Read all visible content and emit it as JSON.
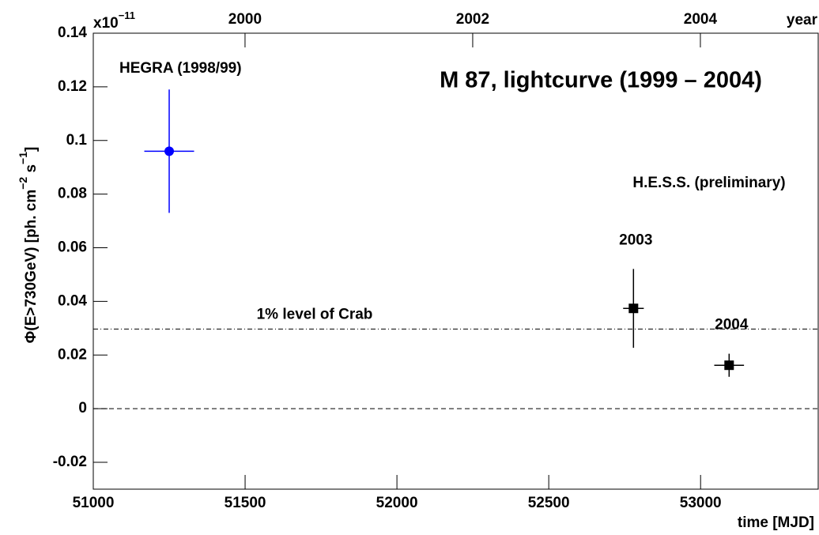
{
  "chart_data": {
    "type": "scatter",
    "title": "M 87, lightcurve (1999 – 2004)",
    "xlabel": "time [MJD]",
    "ylabel": [
      "Φ(E>730GeV) [ph. cm",
      "−2",
      " s",
      "−1",
      "]"
    ],
    "axis_multiplier": {
      "base": "x10",
      "exponent": "−11"
    },
    "x2label": "year",
    "xlim": [
      51000,
      53390
    ],
    "xticks": [
      51000,
      51500,
      52000,
      52500,
      53000
    ],
    "x2lim": [
      1998.667,
      2005.042
    ],
    "x2ticks": [
      2000,
      2002,
      2004
    ],
    "ylim": [
      -0.03,
      0.14
    ],
    "yticks": [
      -0.02,
      0,
      0.02,
      0.04,
      0.06,
      0.08,
      0.1,
      0.12,
      0.14
    ],
    "series": [
      {
        "name": "HEGRA (1998/99)",
        "color": "#0000ff",
        "marker": "circle",
        "x": [
          51250
        ],
        "values": [
          0.096
        ],
        "xerr": [
          82
        ],
        "yerr": [
          0.023
        ]
      },
      {
        "name": "H.E.S.S. (preliminary)",
        "color": "#000000",
        "marker": "square",
        "x": [
          52779,
          53094
        ],
        "values": [
          0.0374,
          0.0162
        ],
        "xerr": [
          34,
          49
        ],
        "yerr": [
          0.0147,
          0.0043
        ],
        "point_labels": [
          "2003",
          "2004"
        ]
      }
    ],
    "reference_lines": [
      {
        "value": 0.0297,
        "label": "1% level of Crab",
        "style": "dash-dot"
      },
      {
        "value": 0,
        "style": "dashed"
      }
    ]
  }
}
